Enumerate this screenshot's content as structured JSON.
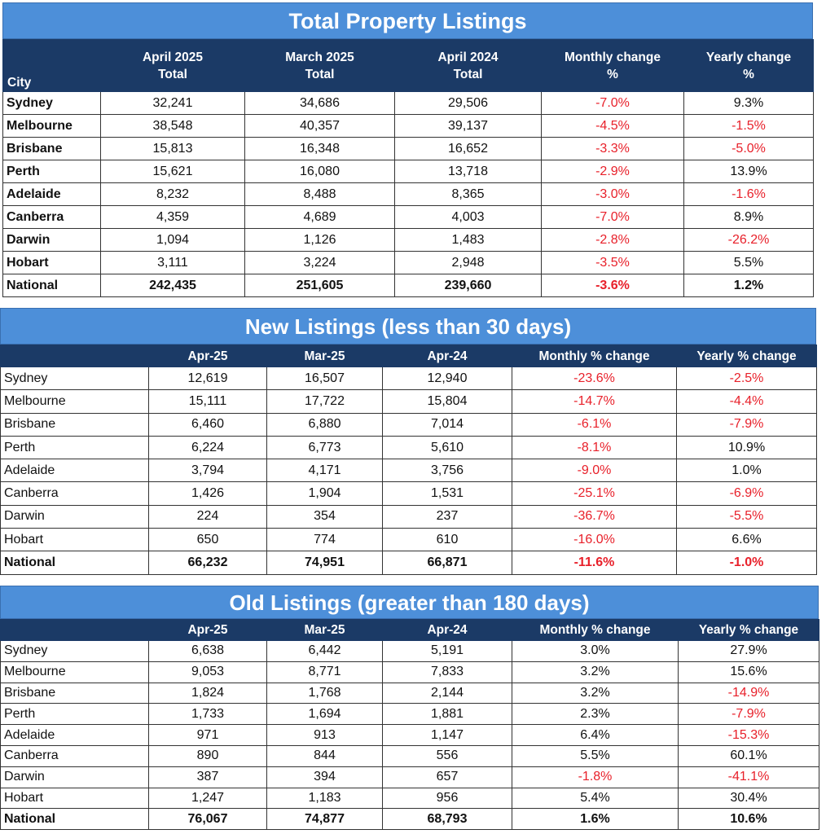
{
  "tables": [
    {
      "title": "Total Property Listings",
      "headers": [
        "City",
        "April 2025\nTotal",
        "March 2025\nTotal",
        "April 2024\nTotal",
        "Monthly change\n%",
        "Yearly change\n%"
      ],
      "rows": [
        [
          "Sydney",
          "32,241",
          "34,686",
          "29,506",
          "-7.0%",
          "9.3%"
        ],
        [
          "Melbourne",
          "38,548",
          "40,357",
          "39,137",
          "-4.5%",
          "-1.5%"
        ],
        [
          "Brisbane",
          "15,813",
          "16,348",
          "16,652",
          "-3.3%",
          "-5.0%"
        ],
        [
          "Perth",
          "15,621",
          "16,080",
          "13,718",
          "-2.9%",
          "13.9%"
        ],
        [
          "Adelaide",
          "8,232",
          "8,488",
          "8,365",
          "-3.0%",
          "-1.6%"
        ],
        [
          "Canberra",
          "4,359",
          "4,689",
          "4,003",
          "-7.0%",
          "8.9%"
        ],
        [
          "Darwin",
          "1,094",
          "1,126",
          "1,483",
          "-2.8%",
          "-26.2%"
        ],
        [
          "Hobart",
          "3,111",
          "3,224",
          "2,948",
          "-3.5%",
          "5.5%"
        ],
        [
          "National",
          "242,435",
          "251,605",
          "239,660",
          "-3.6%",
          "1.2%"
        ]
      ]
    },
    {
      "title": "New Listings (less than 30 days)",
      "headers": [
        "",
        "Apr-25",
        "Mar-25",
        "Apr-24",
        "Monthly % change",
        "Yearly % change"
      ],
      "rows": [
        [
          "Sydney",
          "12,619",
          "16,507",
          "12,940",
          "-23.6%",
          "-2.5%"
        ],
        [
          "Melbourne",
          "15,111",
          "17,722",
          "15,804",
          "-14.7%",
          "-4.4%"
        ],
        [
          "Brisbane",
          "6,460",
          "6,880",
          "7,014",
          "-6.1%",
          "-7.9%"
        ],
        [
          "Perth",
          "6,224",
          "6,773",
          "5,610",
          "-8.1%",
          "10.9%"
        ],
        [
          "Adelaide",
          "3,794",
          "4,171",
          "3,756",
          "-9.0%",
          "1.0%"
        ],
        [
          "Canberra",
          "1,426",
          "1,904",
          "1,531",
          "-25.1%",
          "-6.9%"
        ],
        [
          "Darwin",
          "224",
          "354",
          "237",
          "-36.7%",
          "-5.5%"
        ],
        [
          "Hobart",
          "650",
          "774",
          "610",
          "-16.0%",
          "6.6%"
        ],
        [
          "National",
          "66,232",
          "74,951",
          "66,871",
          "-11.6%",
          "-1.0%"
        ]
      ]
    },
    {
      "title": "Old Listings (greater than 180 days)",
      "headers": [
        "",
        "Apr-25",
        "Mar-25",
        "Apr-24",
        "Monthly % change",
        "Yearly % change"
      ],
      "rows": [
        [
          "Sydney",
          "6,638",
          "6,442",
          "5,191",
          "3.0%",
          "27.9%"
        ],
        [
          "Melbourne",
          "9,053",
          "8,771",
          "7,833",
          "3.2%",
          "15.6%"
        ],
        [
          "Brisbane",
          "1,824",
          "1,768",
          "2,144",
          "3.2%",
          "-14.9%"
        ],
        [
          "Perth",
          "1,733",
          "1,694",
          "1,881",
          "2.3%",
          "-7.9%"
        ],
        [
          "Adelaide",
          "971",
          "913",
          "1,147",
          "6.4%",
          "-15.3%"
        ],
        [
          "Canberra",
          "890",
          "844",
          "556",
          "5.5%",
          "60.1%"
        ],
        [
          "Darwin",
          "387",
          "394",
          "657",
          "-1.8%",
          "-41.1%"
        ],
        [
          "Hobart",
          "1,247",
          "1,183",
          "956",
          "5.4%",
          "30.4%"
        ],
        [
          "National",
          "76,067",
          "74,877",
          "68,793",
          "1.6%",
          "10.6%"
        ]
      ]
    }
  ]
}
